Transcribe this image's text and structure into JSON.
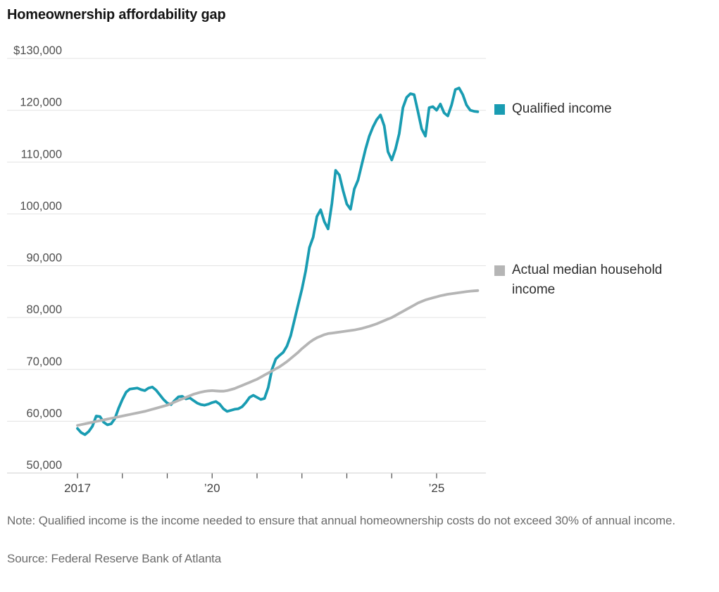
{
  "page": {
    "title": "Homeownership affordability gap"
  },
  "footnote": {
    "note": "Note: Qualified income is the income needed to ensure that annual homeownership costs do not exceed 30% of annual income.",
    "source": "Source: Federal Reserve Bank of Atlanta"
  },
  "colors": {
    "qualified_income_teal": "#199cb2",
    "actual_income_gray": "#b5b5b5",
    "gridline": "#e3e3e3",
    "axis_line": "#cfcfcf",
    "tick_mark": "#4a4a4a",
    "y_label_text": "#4f4f4f",
    "x_label_text": "#3f3f3f"
  },
  "chart_data": {
    "type": "line",
    "title": "Homeownership affordability gap",
    "grid": "horizontal",
    "legend_position": "right",
    "x_axis": {
      "start_year": 2017,
      "points_per_year": 12,
      "tick_years": [
        2017,
        2018,
        2019,
        2020,
        2021,
        2022,
        2023,
        2024,
        2025
      ],
      "tick_labels": [
        {
          "year": 2017,
          "label": "2017"
        },
        {
          "year": 2020,
          "label": "’20"
        },
        {
          "year": 2025,
          "label": "’25"
        }
      ]
    },
    "y_axis": {
      "min": 50000,
      "max": 130000,
      "tick_interval": 10000,
      "ticks": [
        {
          "value": 130000,
          "label": "$130,000"
        },
        {
          "value": 120000,
          "label": "120,000"
        },
        {
          "value": 110000,
          "label": "110,000"
        },
        {
          "value": 100000,
          "label": "100,000"
        },
        {
          "value": 90000,
          "label": "90,000"
        },
        {
          "value": 80000,
          "label": "80,000"
        },
        {
          "value": 70000,
          "label": "70,000"
        },
        {
          "value": 60000,
          "label": "60,000"
        },
        {
          "value": 50000,
          "label": "50,000"
        }
      ]
    },
    "series": [
      {
        "name": "Qualified income",
        "color": "#199cb2",
        "line_width": 3.8,
        "values": [
          58600,
          57800,
          57400,
          58000,
          59000,
          61000,
          60900,
          59800,
          59300,
          59500,
          60500,
          62500,
          64200,
          65600,
          66200,
          66300,
          66400,
          66100,
          65900,
          66400,
          66600,
          66000,
          65100,
          64200,
          63500,
          63200,
          64000,
          64700,
          64800,
          64300,
          64500,
          64000,
          63500,
          63200,
          63100,
          63300,
          63600,
          63800,
          63300,
          62400,
          61900,
          62100,
          62300,
          62400,
          62800,
          63600,
          64600,
          65000,
          64600,
          64200,
          64400,
          66500,
          70000,
          72000,
          72700,
          73300,
          74500,
          76500,
          79500,
          82500,
          85500,
          89000,
          93500,
          95500,
          99500,
          100800,
          98500,
          97100,
          102000,
          108400,
          107500,
          104500,
          101900,
          100900,
          104800,
          106500,
          109500,
          112500,
          115000,
          116800,
          118200,
          119100,
          117000,
          112000,
          110400,
          112500,
          115500,
          120500,
          122500,
          123200,
          123000,
          119800,
          116400,
          115000,
          120500,
          120700,
          120000,
          121200,
          119500,
          118900,
          121000,
          124000,
          124300,
          123000,
          121000,
          120000,
          119800,
          119700
        ]
      },
      {
        "name": "Actual median household income",
        "color": "#b5b5b5",
        "line_width": 3.8,
        "values": [
          59200,
          59350,
          59500,
          59650,
          59800,
          59950,
          60100,
          60250,
          60400,
          60550,
          60700,
          60850,
          61000,
          61150,
          61300,
          61450,
          61600,
          61750,
          61900,
          62100,
          62300,
          62500,
          62700,
          62900,
          63100,
          63400,
          63700,
          64000,
          64300,
          64600,
          64900,
          65200,
          65400,
          65600,
          65750,
          65850,
          65900,
          65850,
          65800,
          65800,
          65900,
          66100,
          66300,
          66600,
          66900,
          67200,
          67500,
          67800,
          68100,
          68500,
          68900,
          69300,
          69700,
          70100,
          70500,
          71000,
          71500,
          72100,
          72700,
          73300,
          74000,
          74600,
          75200,
          75700,
          76100,
          76400,
          76700,
          76900,
          77000,
          77100,
          77200,
          77300,
          77400,
          77500,
          77600,
          77750,
          77900,
          78100,
          78300,
          78550,
          78800,
          79100,
          79400,
          79700,
          80000,
          80400,
          80800,
          81200,
          81600,
          82000,
          82400,
          82800,
          83100,
          83400,
          83600,
          83800,
          84000,
          84200,
          84350,
          84500,
          84600,
          84700,
          84800,
          84900,
          85000,
          85100,
          85150,
          85200
        ]
      }
    ]
  }
}
